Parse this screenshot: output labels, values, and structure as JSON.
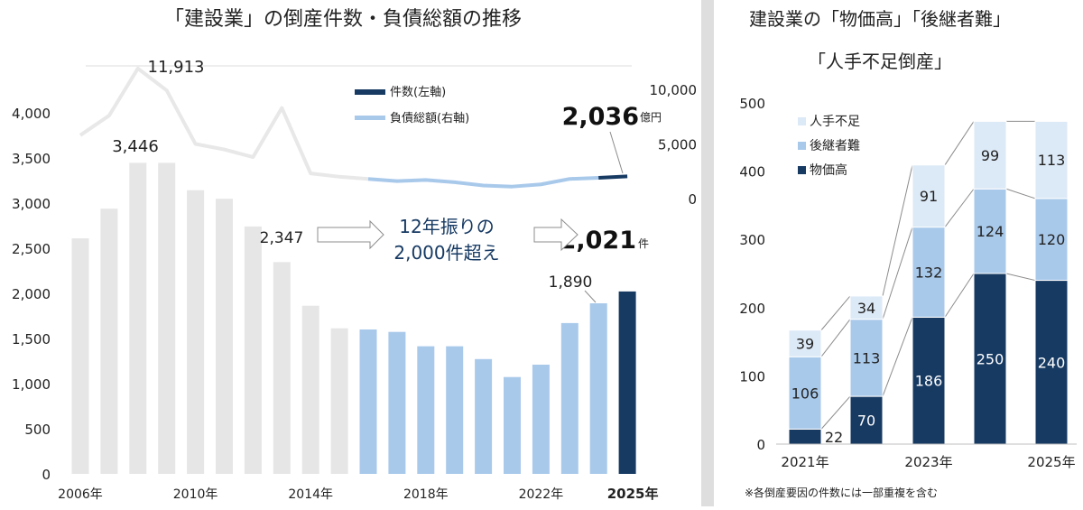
{
  "colors": {
    "gray_bar": "#e6e6e6",
    "light_blue": "#a9c9eb",
    "navy": "#173a63",
    "pale_blue": "#dce9f6",
    "divider": "#dedede",
    "connector": "#8c8c8c"
  },
  "chart_data": [
    {
      "type": "bar",
      "title": "「建設業」の倒産件数・負債総額の推移",
      "categories": [
        "2006年",
        "2007年",
        "2008年",
        "2009年",
        "2010年",
        "2011年",
        "2012年",
        "2013年",
        "2014年",
        "2015年",
        "2016年",
        "2017年",
        "2018年",
        "2019年",
        "2020年",
        "2021年",
        "2022年",
        "2023年",
        "2024年",
        "2025年"
      ],
      "x_tick_labels": [
        "2006年",
        "2010年",
        "2014年",
        "2018年",
        "2022年",
        "2025年"
      ],
      "series": [
        {
          "name": "件数(左軸)",
          "type": "bar",
          "axis": "left",
          "values": [
            2609,
            2938,
            3446,
            3446,
            3143,
            3048,
            2741,
            2347,
            1863,
            1613,
            1600,
            1573,
            1414,
            1414,
            1272,
            1073,
            1210,
            1671,
            1890,
            2021
          ]
        },
        {
          "name": "負債総額(右軸)",
          "type": "line",
          "axis": "right",
          "values": [
            5800,
            7600,
            11913,
            9900,
            5000,
            4500,
            3800,
            8300,
            2300,
            2000,
            1800,
            1600,
            1700,
            1500,
            1200,
            1100,
            1300,
            1800,
            1900,
            2036
          ]
        }
      ],
      "left_axis": {
        "ticks": [
          "0",
          "500",
          "1,000",
          "1,500",
          "2,000",
          "2,500",
          "3,000",
          "3,500",
          "4,000"
        ],
        "ylim": [
          0,
          4000
        ]
      },
      "right_axis": {
        "ticks": [
          "0",
          "5,000",
          "10,000"
        ],
        "ylim": [
          0,
          10000
        ],
        "unit": "億円"
      },
      "data_labels": {
        "v2008": "3,446",
        "v2013": "2,347",
        "v2024": "1,890",
        "v2025": "2,021",
        "v2025_unit": "件",
        "debt_2008": "11,913",
        "debt_2025": "2,036",
        "debt_unit": "億円"
      },
      "annotation": {
        "line1": "12年振りの",
        "line2": "2,000件超え"
      },
      "legend": [
        "件数(左軸)",
        "負債総額(右軸)"
      ],
      "legend_position": "top-right",
      "grid": false
    },
    {
      "type": "bar",
      "stacked": true,
      "title_line1": "建設業の「物価高」「後継者難」",
      "title_line2": "「人手不足倒産」",
      "categories": [
        "2021年",
        "2022年",
        "2023年",
        "2024年",
        "2025年"
      ],
      "x_tick_labels": [
        "2021年",
        "2023年",
        "2025年"
      ],
      "series": [
        {
          "name": "物価高",
          "values": [
            22,
            70,
            186,
            250,
            240
          ]
        },
        {
          "name": "後継者難",
          "values": [
            106,
            113,
            132,
            124,
            120
          ]
        },
        {
          "name": "人手不足",
          "values": [
            39,
            34,
            91,
            99,
            113
          ]
        }
      ],
      "y_ticks": [
        "0",
        "100",
        "200",
        "300",
        "400",
        "500"
      ],
      "ylim": [
        0,
        500
      ],
      "legend": [
        "人手不足",
        "後継者難",
        "物価高"
      ],
      "legend_position": "top-left",
      "grid": false,
      "footnote": "※各倒産要因の件数には一部重複を含む"
    }
  ]
}
